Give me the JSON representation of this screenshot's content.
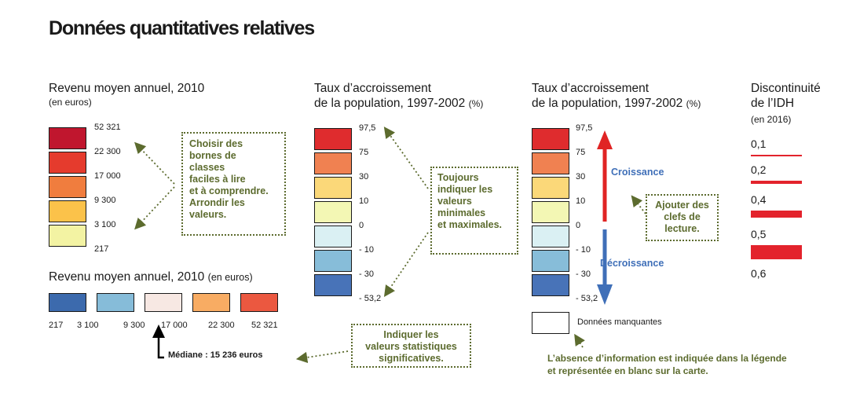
{
  "title": "Données quantitatives relatives",
  "panel1": {
    "heading": "Revenu moyen annuel, 2010",
    "subheading": "(en euros)",
    "colors": [
      "#c0162e",
      "#e53b2d",
      "#f07d3e",
      "#fbc24a",
      "#f3f3a3"
    ],
    "labels": [
      "52 321",
      "22 300",
      "17 000",
      "9 300",
      "3 100",
      "217"
    ]
  },
  "note1": {
    "lines": [
      "Choisir des",
      "bornes de",
      "classes",
      "faciles à lire",
      "et à comprendre.",
      "Arrondir les",
      "valeurs."
    ]
  },
  "panel2": {
    "heading": "Revenu moyen annuel, 2010",
    "subheading": "(en euros)",
    "colors": [
      "#3c6aad",
      "#86bcd9",
      "#f7e8e3",
      "#f8ac63",
      "#eb5840"
    ],
    "labels": [
      "217",
      "3 100",
      "9 300",
      "17 000",
      "22 300",
      "52 321"
    ],
    "median": "Médiane : 15 236 euros"
  },
  "note4": {
    "lines": [
      "Indiquer les",
      "valeurs statistiques",
      "significatives."
    ]
  },
  "panel3": {
    "heading_line1": "Taux d’accroissement",
    "heading_line2": "de la population, 1997-2002",
    "unit": "(%)",
    "colors": [
      "#df2c2e",
      "#f08151",
      "#fbd879",
      "#f3f7b4",
      "#daf0f3",
      "#87bdd9",
      "#4873b8"
    ],
    "labels": [
      "97,5",
      "75",
      "30",
      "10",
      "0",
      "- 10",
      "- 30",
      "- 53,2"
    ]
  },
  "note2": {
    "lines": [
      "Toujours",
      "indiquer les",
      "valeurs",
      "minimales",
      "et maximales."
    ]
  },
  "panel4": {
    "heading_line1": "Taux d’accroissement",
    "heading_line2": "de la population, 1997-2002",
    "unit": "(%)",
    "colors": [
      "#df2c2e",
      "#f08151",
      "#fbd879",
      "#f3f7b4",
      "#daf0f3",
      "#87bdd9",
      "#4873b8"
    ],
    "labels": [
      "97,5",
      "75",
      "30",
      "10",
      "0",
      "- 10",
      "- 30",
      "- 53,2"
    ],
    "croissance": "Croissance",
    "decroissance": "Décroissance",
    "missing": "Données manquantes",
    "missing_note_line1": "L’absence d’information est indiquée dans la légende",
    "missing_note_line2": "et représentée en blanc sur la carte.",
    "arrow_up_color": "#e02424",
    "arrow_down_color": "#3f6fb8"
  },
  "note3": {
    "lines": [
      "Ajouter des",
      "clefs de",
      "lecture."
    ]
  },
  "panel5": {
    "heading_line1": "Discontinuité",
    "heading_line2": "de l’IDH",
    "subheading": "(en 2016)",
    "labels": [
      "0,1",
      "0,2",
      "0,4",
      "0,5",
      "0,6"
    ],
    "color": "#e3232c"
  }
}
